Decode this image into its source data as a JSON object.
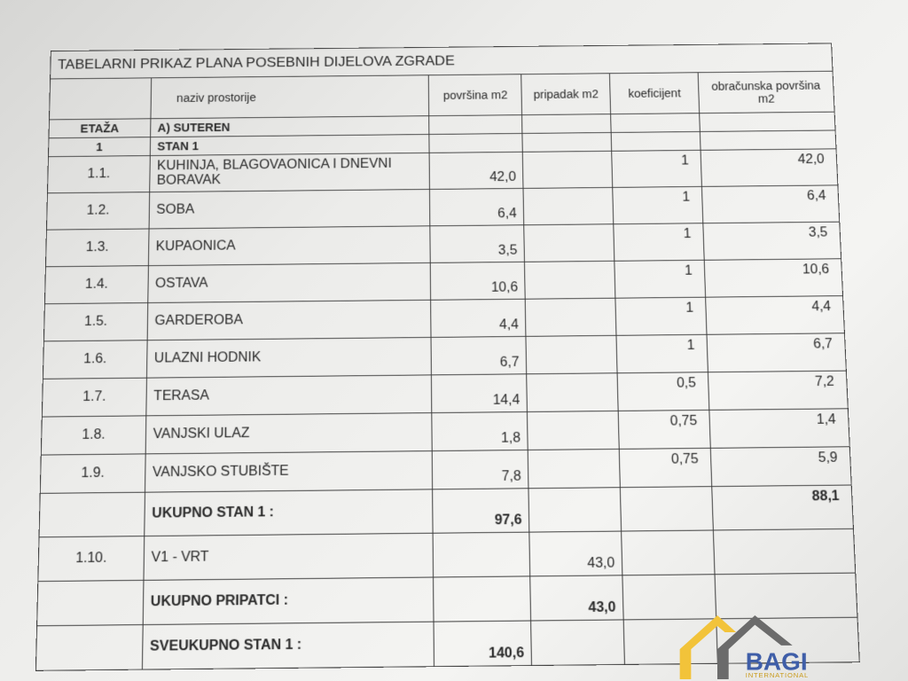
{
  "title": "TABELARNI PRIKAZ PLANA POSEBNIH DIJELOVA ZGRADE",
  "headers": {
    "name": "naziv prostorije",
    "povrsina": "površina m2",
    "pripadak": "pripadak m2",
    "koeficijent": "koeficijent",
    "obracunska": "obračunska površina m2"
  },
  "floor": {
    "label": "ETAŽA",
    "name": "A) SUTEREN"
  },
  "unit": {
    "index": "1",
    "name": "STAN 1"
  },
  "rooms": [
    {
      "idx": "1.1.",
      "name": "KUHINJA, BLAGOVAONICA I DNEVNI BORAVAK",
      "povrsina": "42,0",
      "koef": "1",
      "obr": "42,0"
    },
    {
      "idx": "1.2.",
      "name": "SOBA",
      "povrsina": "6,4",
      "koef": "1",
      "obr": "6,4"
    },
    {
      "idx": "1.3.",
      "name": "KUPAONICA",
      "povrsina": "3,5",
      "koef": "1",
      "obr": "3,5"
    },
    {
      "idx": "1.4.",
      "name": "OSTAVA",
      "povrsina": "10,6",
      "koef": "1",
      "obr": "10,6"
    },
    {
      "idx": "1.5.",
      "name": "GARDEROBA",
      "povrsina": "4,4",
      "koef": "1",
      "obr": "4,4"
    },
    {
      "idx": "1.6.",
      "name": "ULAZNI HODNIK",
      "povrsina": "6,7",
      "koef": "1",
      "obr": "6,7"
    },
    {
      "idx": "1.7.",
      "name": "TERASA",
      "povrsina": "14,4",
      "koef": "0,5",
      "obr": "7,2"
    },
    {
      "idx": "1.8.",
      "name": "VANJSKI ULAZ",
      "povrsina": "1,8",
      "koef": "0,75",
      "obr": "1,4"
    },
    {
      "idx": "1.9.",
      "name": "VANJSKO STUBIŠTE",
      "povrsina": "7,8",
      "koef": "0,75",
      "obr": "5,9"
    }
  ],
  "total_unit": {
    "label": "UKUPNO STAN 1 :",
    "povrsina": "97,6",
    "obr": "88,1"
  },
  "garden": {
    "idx": "1.10.",
    "name": "V1 - VRT",
    "pripadak": "43,0"
  },
  "total_appurtenances": {
    "label": "UKUPNO PRIPATCI :",
    "pripadak": "43,0"
  },
  "grand_total": {
    "label": "SVEUKUPNO STAN 1 :",
    "povrsina": "140,6"
  },
  "watermark": {
    "brand": "BAGI",
    "sub": "INTERNATIONAL",
    "colors": {
      "house_yellow": "#f2c33a",
      "house_grey": "#6b6b6b",
      "text_blue": "#3f5ea8"
    }
  }
}
